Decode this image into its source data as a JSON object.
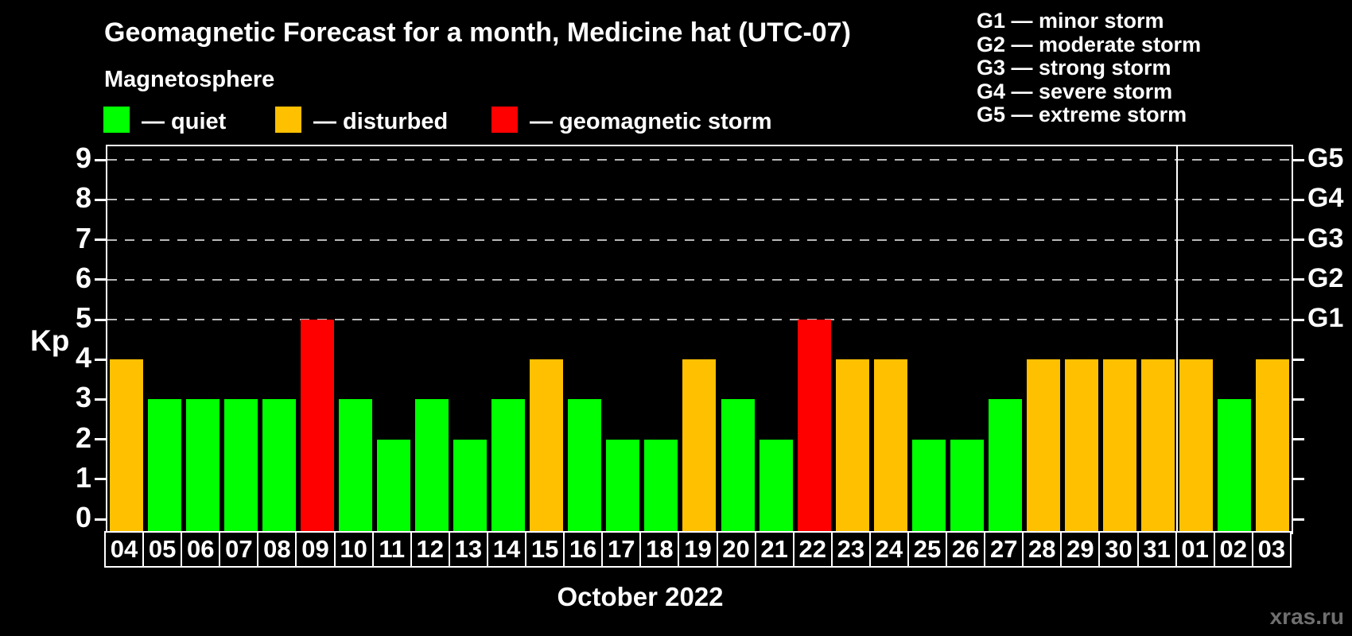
{
  "title": "Geomagnetic Forecast for a month, Medicine hat (UTC-07)",
  "subtitle": "Magnetosphere",
  "legend": {
    "items": [
      {
        "label": "— quiet",
        "state": "quiet"
      },
      {
        "label": "— disturbed",
        "state": "disturbed"
      },
      {
        "label": "— geomagnetic storm",
        "state": "storm"
      }
    ]
  },
  "g_legend": {
    "lines": [
      "G1 — minor storm",
      "G2 — moderate storm",
      "G3 — strong storm",
      "G4 — severe storm",
      "G5 — extreme storm"
    ]
  },
  "watermark": "xras.ru",
  "colors": {
    "quiet": "#00ff00",
    "disturbed": "#ffc000",
    "storm": "#ff0000",
    "background": "#000000",
    "text": "#ffffff",
    "grid": "#b9b9b9",
    "watermark": "#6f6f6f"
  },
  "chart_data": {
    "type": "bar",
    "title": "Geomagnetic Forecast for a month, Medicine hat (UTC-07)",
    "ylabel": "Kp",
    "xlabel": "October 2022",
    "ylim": [
      0,
      9
    ],
    "y_ticks": [
      0,
      1,
      2,
      3,
      4,
      5,
      6,
      7,
      8,
      9
    ],
    "gridlines_at_kp": [
      5,
      6,
      7,
      8,
      9
    ],
    "grid_style": "dashed",
    "legend_position": "top-left",
    "right_axis_labels": [
      {
        "label": "G1",
        "kp": 5
      },
      {
        "label": "G2",
        "kp": 6
      },
      {
        "label": "G3",
        "kp": 7
      },
      {
        "label": "G4",
        "kp": 8
      },
      {
        "label": "G5",
        "kp": 9
      }
    ],
    "month_separator_after_day": "31",
    "days": [
      {
        "day": "04",
        "kp": 4,
        "state": "disturbed"
      },
      {
        "day": "05",
        "kp": 3,
        "state": "quiet"
      },
      {
        "day": "06",
        "kp": 3,
        "state": "quiet"
      },
      {
        "day": "07",
        "kp": 3,
        "state": "quiet"
      },
      {
        "day": "08",
        "kp": 3,
        "state": "quiet"
      },
      {
        "day": "09",
        "kp": 5,
        "state": "storm"
      },
      {
        "day": "10",
        "kp": 3,
        "state": "quiet"
      },
      {
        "day": "11",
        "kp": 2,
        "state": "quiet"
      },
      {
        "day": "12",
        "kp": 3,
        "state": "quiet"
      },
      {
        "day": "13",
        "kp": 2,
        "state": "quiet"
      },
      {
        "day": "14",
        "kp": 3,
        "state": "quiet"
      },
      {
        "day": "15",
        "kp": 4,
        "state": "disturbed"
      },
      {
        "day": "16",
        "kp": 3,
        "state": "quiet"
      },
      {
        "day": "17",
        "kp": 2,
        "state": "quiet"
      },
      {
        "day": "18",
        "kp": 2,
        "state": "quiet"
      },
      {
        "day": "19",
        "kp": 4,
        "state": "disturbed"
      },
      {
        "day": "20",
        "kp": 3,
        "state": "quiet"
      },
      {
        "day": "21",
        "kp": 2,
        "state": "quiet"
      },
      {
        "day": "22",
        "kp": 5,
        "state": "storm"
      },
      {
        "day": "23",
        "kp": 4,
        "state": "disturbed"
      },
      {
        "day": "24",
        "kp": 4,
        "state": "disturbed"
      },
      {
        "day": "25",
        "kp": 2,
        "state": "quiet"
      },
      {
        "day": "26",
        "kp": 2,
        "state": "quiet"
      },
      {
        "day": "27",
        "kp": 3,
        "state": "quiet"
      },
      {
        "day": "28",
        "kp": 4,
        "state": "disturbed"
      },
      {
        "day": "29",
        "kp": 4,
        "state": "disturbed"
      },
      {
        "day": "30",
        "kp": 4,
        "state": "disturbed"
      },
      {
        "day": "31",
        "kp": 4,
        "state": "disturbed"
      },
      {
        "day": "01",
        "kp": 4,
        "state": "disturbed"
      },
      {
        "day": "02",
        "kp": 3,
        "state": "quiet"
      },
      {
        "day": "03",
        "kp": 4,
        "state": "disturbed"
      }
    ]
  }
}
